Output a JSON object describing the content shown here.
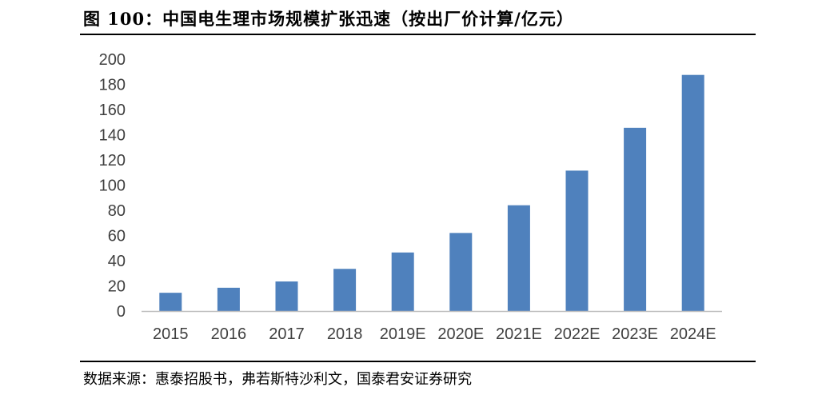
{
  "figure": {
    "title": "图 100：中国电生理市场规模扩张迅速（按出厂价计算/亿元）",
    "source": "数据来源：惠泰招股书，弗若斯特沙利文，国泰君安证券研究"
  },
  "chart_data": {
    "type": "bar",
    "title": "图 100：中国电生理市场规模扩张迅速（按出厂价计算/亿元）",
    "xlabel": "",
    "ylabel": "",
    "categories": [
      "2015",
      "2016",
      "2017",
      "2018",
      "2019E",
      "2020E",
      "2021E",
      "2022E",
      "2023E",
      "2024E"
    ],
    "values": [
      14.5,
      18.5,
      23.5,
      33.5,
      46.5,
      62,
      84,
      111.5,
      145.5,
      187.5
    ],
    "ylim": [
      0,
      200
    ],
    "yticks": [
      0,
      20,
      40,
      60,
      80,
      100,
      120,
      140,
      160,
      180,
      200
    ],
    "grid": false,
    "legend": "none",
    "bar_color": "#4F81BD",
    "axis_color": "#BFBFBF"
  }
}
